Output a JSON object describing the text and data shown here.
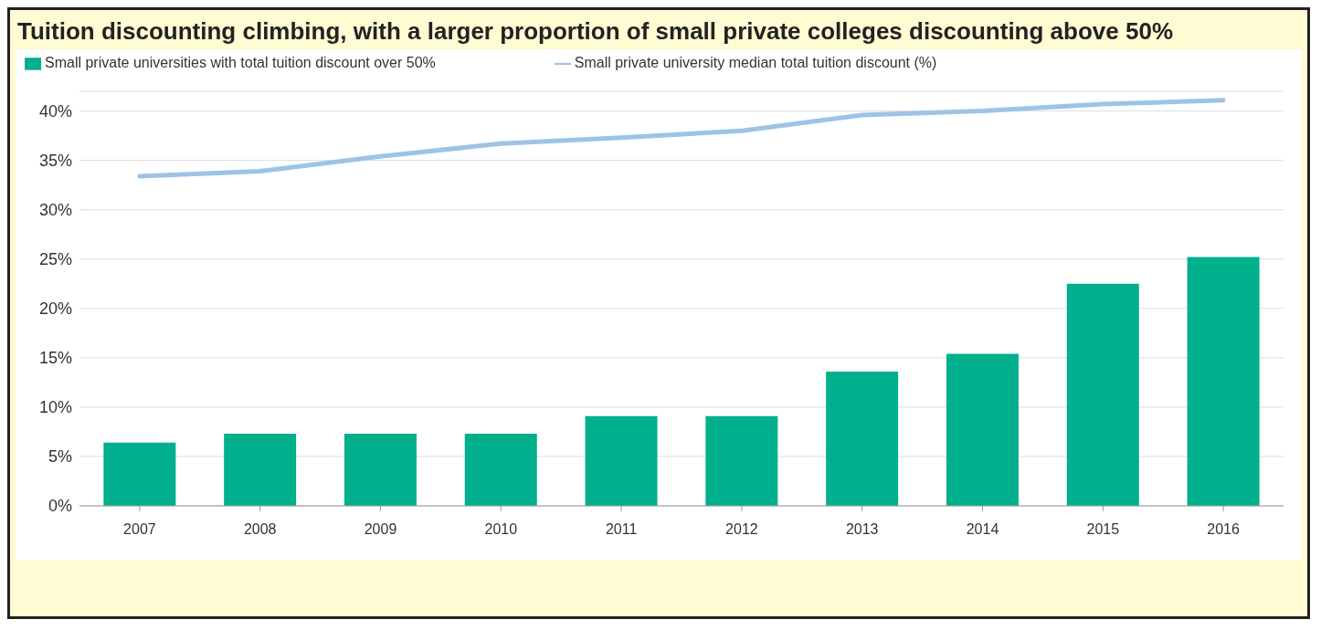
{
  "chart_data": {
    "type": "bar",
    "title": "Tuition discounting climbing, with a larger proportion of small private colleges discounting above 50%",
    "categories": [
      "2007",
      "2008",
      "2009",
      "2010",
      "2011",
      "2012",
      "2013",
      "2014",
      "2015",
      "2016"
    ],
    "series": [
      {
        "name": "Small private universities with total tuition discount over 50%",
        "color": "#00b08c",
        "values": [
          6.4,
          7.3,
          7.3,
          7.3,
          9.1,
          9.1,
          13.6,
          15.4,
          22.5,
          25.2
        ]
      },
      {
        "name": "Small private university median total tuition discount (%)",
        "type": "line",
        "color": "#9dc3e6",
        "values": [
          33.4,
          33.9,
          35.4,
          36.7,
          37.3,
          38.0,
          39.6,
          40.0,
          40.7,
          41.1
        ]
      }
    ],
    "ylim": [
      0,
      42
    ],
    "yticks": [
      {
        "value": 0,
        "label": "0%"
      },
      {
        "value": 5,
        "label": "5%"
      },
      {
        "value": 10,
        "label": "10%"
      },
      {
        "value": 15,
        "label": "15%"
      },
      {
        "value": 20,
        "label": "20%"
      },
      {
        "value": 25,
        "label": "25%"
      },
      {
        "value": 30,
        "label": "30%"
      },
      {
        "value": 35,
        "label": "35%"
      },
      {
        "value": 40,
        "label": "40%"
      }
    ],
    "grid": "y",
    "legend": "top",
    "marker": "none",
    "line_style": "solid"
  }
}
